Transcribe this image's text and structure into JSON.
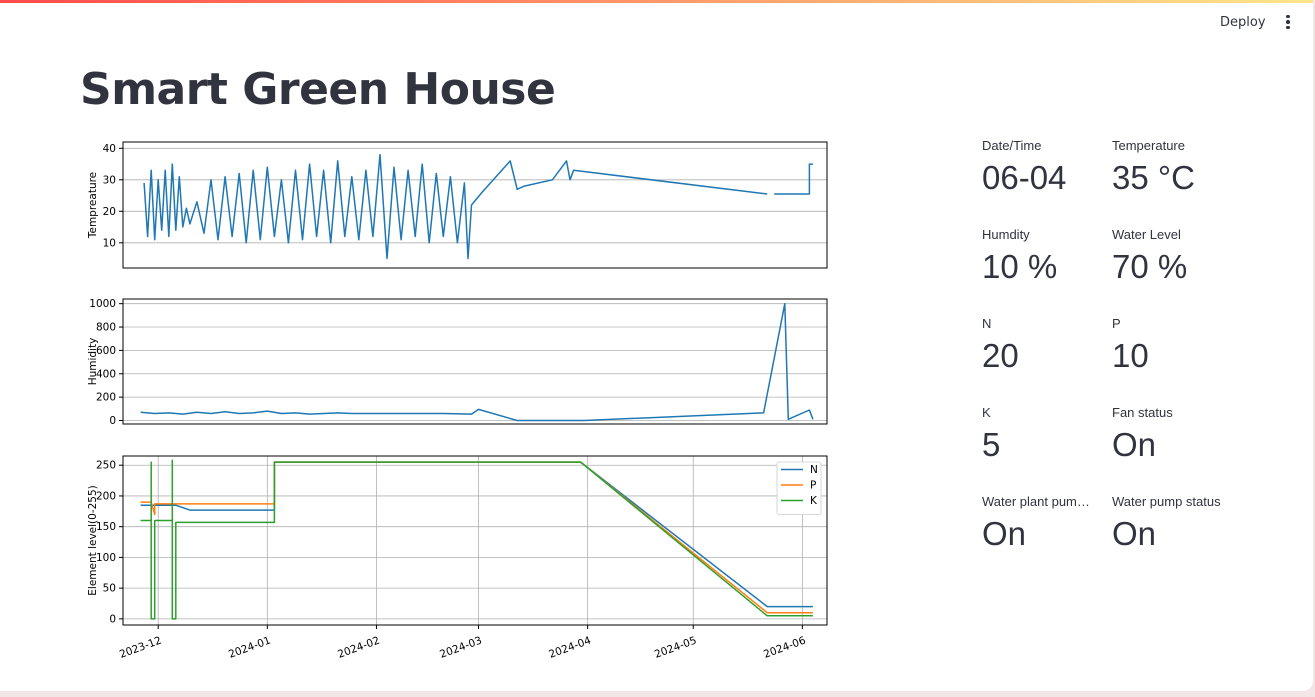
{
  "header": {
    "deploy_label": "Deploy",
    "menu_icon": "kebab-menu-icon"
  },
  "page": {
    "title": "Smart Green House"
  },
  "metrics": [
    {
      "label": "Date/Time",
      "value": "06-04"
    },
    {
      "label": "Temperature",
      "value": "35 °C"
    },
    {
      "label": "Humdity",
      "value": "10 %"
    },
    {
      "label": "Water Level",
      "value": "70 %"
    },
    {
      "label": "N",
      "value": "20"
    },
    {
      "label": "P",
      "value": "10"
    },
    {
      "label": "K",
      "value": "5"
    },
    {
      "label": "Fan status",
      "value": "On"
    },
    {
      "label": "Water plant pum…",
      "value": "On"
    },
    {
      "label": "Water pump status",
      "value": "On"
    }
  ],
  "chart_data": [
    {
      "type": "line",
      "ylabel": "Tempreature",
      "ylim": [
        2,
        42
      ],
      "yticks": [
        10,
        20,
        30,
        40
      ],
      "grid": "y",
      "series": [
        {
          "color": "#1f77b4",
          "x": [
            "2023-11-27",
            "2023-11-28",
            "2023-11-29",
            "2023-11-30",
            "2023-12-01",
            "2023-12-02",
            "2023-12-03",
            "2023-12-04",
            "2023-12-05",
            "2023-12-06",
            "2023-12-07",
            "2023-12-08",
            "2023-12-09",
            "2023-12-10",
            "2023-12-12",
            "2023-12-14",
            "2023-12-16",
            "2023-12-18",
            "2023-12-20",
            "2023-12-22",
            "2023-12-24",
            "2023-12-26",
            "2023-12-28",
            "2023-12-30",
            "2024-01-01",
            "2024-01-03",
            "2024-01-05",
            "2024-01-07",
            "2024-01-09",
            "2024-01-11",
            "2024-01-13",
            "2024-01-15",
            "2024-01-17",
            "2024-01-19",
            "2024-01-21",
            "2024-01-23",
            "2024-01-25",
            "2024-01-27",
            "2024-01-29",
            "2024-01-31",
            "2024-02-02",
            "2024-02-04",
            "2024-02-06",
            "2024-02-08",
            "2024-02-10",
            "2024-02-12",
            "2024-02-14",
            "2024-02-16",
            "2024-02-18",
            "2024-02-20",
            "2024-02-22",
            "2024-02-24",
            "2024-02-26",
            "2024-02-27",
            "2024-02-28",
            "2024-03-02",
            "2024-03-10",
            "2024-03-12",
            "2024-03-14",
            "2024-03-22",
            "2024-03-26",
            "2024-03-27",
            "2024-03-28",
            "2024-05-22"
          ],
          "y": [
            29,
            12,
            33,
            11,
            30,
            14,
            33,
            12,
            35,
            14,
            31,
            15,
            21,
            16,
            23,
            13,
            30,
            11,
            31,
            12,
            32,
            10,
            33,
            11,
            34,
            12,
            30,
            10,
            33,
            11,
            35,
            12,
            33,
            10,
            36,
            12,
            31,
            11,
            33,
            12,
            38,
            5,
            34,
            11,
            33,
            12,
            35,
            10,
            32,
            12,
            31,
            10,
            29,
            5,
            22,
            26,
            36,
            27,
            28,
            30,
            36,
            30,
            33,
            25.5
          ]
        },
        {
          "color": "#1f77b4",
          "x": [
            "2024-05-24",
            "2024-06-03",
            "2024-06-03",
            "2024-06-04"
          ],
          "y": [
            25.5,
            25.5,
            35,
            35
          ]
        }
      ]
    },
    {
      "type": "line",
      "ylabel": "Humidity",
      "ylim": [
        -30,
        1040
      ],
      "yticks": [
        0,
        200,
        400,
        600,
        800,
        1000
      ],
      "grid": "y",
      "series": [
        {
          "color": "#1f77b4",
          "x": [
            "2023-11-26",
            "2023-11-30",
            "2023-12-04",
            "2023-12-08",
            "2023-12-12",
            "2023-12-16",
            "2023-12-20",
            "2023-12-24",
            "2023-12-28",
            "2024-01-01",
            "2024-01-05",
            "2024-01-09",
            "2024-01-13",
            "2024-01-17",
            "2024-01-21",
            "2024-01-25",
            "2024-02-01",
            "2024-02-10",
            "2024-02-20",
            "2024-02-28",
            "2024-03-01",
            "2024-03-12",
            "2024-03-31",
            "2024-05-21",
            "2024-05-27",
            "2024-05-28",
            "2024-06-03",
            "2024-06-04"
          ],
          "y": [
            70,
            60,
            65,
            55,
            70,
            60,
            75,
            60,
            65,
            80,
            60,
            65,
            55,
            60,
            65,
            60,
            60,
            60,
            60,
            55,
            95,
            0,
            0,
            65,
            1000,
            10,
            90,
            10
          ]
        }
      ]
    },
    {
      "type": "line",
      "ylabel": "Element level(0-255)",
      "ylim": [
        -10,
        265
      ],
      "yticks": [
        0,
        50,
        100,
        150,
        200,
        250
      ],
      "xticks": [
        "2023-12",
        "2024-01",
        "2024-02",
        "2024-03",
        "2024-04",
        "2024-05",
        "2024-06"
      ],
      "grid": "both",
      "legend": "top-right",
      "series": [
        {
          "name": "N",
          "color": "#1f77b4",
          "x": [
            "2023-11-26",
            "2023-12-06",
            "2023-12-10",
            "2024-01-03",
            "2024-01-03",
            "2024-03-30",
            "2024-05-22",
            "2024-06-04"
          ],
          "y": [
            185,
            185,
            177,
            177,
            255,
            255,
            20,
            20
          ]
        },
        {
          "name": "P",
          "color": "#ff7f0e",
          "x": [
            "2023-11-26",
            "2023-11-29",
            "2023-11-30",
            "2023-11-30",
            "2024-01-03",
            "2024-01-03",
            "2024-03-30",
            "2024-05-22",
            "2024-06-04"
          ],
          "y": [
            190,
            190,
            170,
            187,
            187,
            255,
            255,
            10,
            10
          ]
        },
        {
          "name": "K",
          "color": "#2ca02c",
          "x": [
            "2023-11-26",
            "2023-11-29",
            "2023-11-29",
            "2023-11-29",
            "2023-11-30",
            "2023-11-30",
            "2023-12-05",
            "2023-12-05",
            "2023-12-05",
            "2023-12-06",
            "2023-12-06",
            "2024-01-03",
            "2024-01-03",
            "2024-03-30",
            "2024-05-22",
            "2024-06-04"
          ],
          "y": [
            160,
            160,
            255,
            0,
            0,
            160,
            160,
            258,
            0,
            0,
            157,
            157,
            255,
            255,
            5,
            5
          ]
        }
      ]
    }
  ]
}
